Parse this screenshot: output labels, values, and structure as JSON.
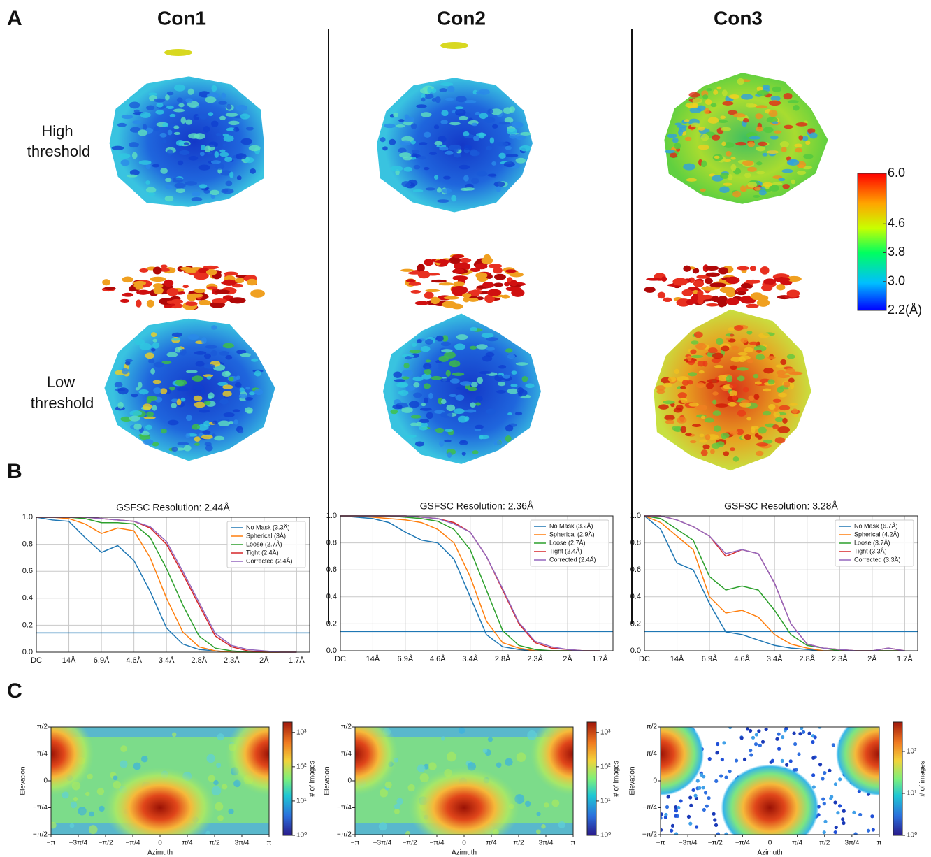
{
  "panel_labels": [
    "A",
    "B",
    "C"
  ],
  "columns": [
    "Con1",
    "Con2",
    "Con3"
  ],
  "row_labels": [
    [
      "High",
      "threshold"
    ],
    [
      "Low",
      "threshold"
    ]
  ],
  "colorbar": {
    "lim": [
      2.2,
      6.0
    ],
    "ticks": [
      {
        "value": 6.0,
        "label": "6.0"
      },
      {
        "value": 4.6,
        "label": "4.6"
      },
      {
        "value": 3.8,
        "label": "3.8"
      },
      {
        "value": 3.0,
        "label": "3.0"
      },
      {
        "value": 2.2,
        "label": "2.2(Å)"
      }
    ]
  },
  "chart_data": [
    {
      "type": "line",
      "title": "GSFSC Resolution: 2.44Å",
      "x": [
        0,
        0.5,
        1,
        1.5,
        2,
        2.5,
        3,
        3.5,
        4,
        4.5,
        5,
        5.5,
        6,
        6.5,
        7,
        7.5,
        8
      ],
      "xlim": [
        0,
        8.4
      ],
      "xticks": [
        {
          "value": 0,
          "label": "DC"
        },
        {
          "value": 1,
          "label": "14Å"
        },
        {
          "value": 2,
          "label": "6.9Å"
        },
        {
          "value": 3,
          "label": "4.6Å"
        },
        {
          "value": 4,
          "label": "3.4Å"
        },
        {
          "value": 5,
          "label": "2.8Å"
        },
        {
          "value": 6,
          "label": "2.3Å"
        },
        {
          "value": 7,
          "label": "2Å"
        },
        {
          "value": 8,
          "label": "1.7Å"
        }
      ],
      "ylim": [
        0,
        1
      ],
      "yticks": [
        {
          "value": 0,
          "label": "0.0"
        },
        0.2,
        0.4,
        0.6,
        0.8,
        {
          "value": 1,
          "label": "1.0"
        }
      ],
      "grid": true,
      "legend": "upper right",
      "threshold": 0.143,
      "threshold_color": "#1f77b4",
      "series": [
        {
          "name": "No Mask (3.3Å)",
          "color": "#1f77b4",
          "values": [
            1,
            0.98,
            0.97,
            0.85,
            0.74,
            0.79,
            0.68,
            0.45,
            0.18,
            0.06,
            0.02,
            0.01,
            0,
            0,
            0,
            0,
            0
          ]
        },
        {
          "name": "Spherical (3Å)",
          "color": "#ff7f0e",
          "values": [
            1,
            1,
            0.99,
            0.95,
            0.88,
            0.92,
            0.9,
            0.7,
            0.4,
            0.15,
            0.04,
            0.01,
            0,
            0,
            0,
            0,
            0
          ]
        },
        {
          "name": "Loose (2.7Å)",
          "color": "#2ca02c",
          "values": [
            1,
            1,
            1,
            0.99,
            0.96,
            0.96,
            0.95,
            0.85,
            0.62,
            0.35,
            0.12,
            0.03,
            0.01,
            0,
            0,
            0,
            0
          ]
        },
        {
          "name": "Tight (2.4Å)",
          "color": "#d62728",
          "values": [
            1,
            1,
            1,
            1,
            0.99,
            0.98,
            0.97,
            0.92,
            0.8,
            0.58,
            0.35,
            0.12,
            0.04,
            0.01,
            0,
            0,
            0
          ]
        },
        {
          "name": "Corrected (2.4Å)",
          "color": "#9467bd",
          "values": [
            1,
            1,
            1,
            1,
            0.99,
            0.98,
            0.97,
            0.93,
            0.82,
            0.6,
            0.37,
            0.14,
            0.05,
            0.02,
            0.01,
            0,
            0
          ]
        }
      ]
    },
    {
      "type": "line",
      "title": "GSFSC Resolution: 2.36Å",
      "x": [
        0,
        0.5,
        1,
        1.5,
        2,
        2.5,
        3,
        3.5,
        4,
        4.5,
        5,
        5.5,
        6,
        6.5,
        7,
        7.5,
        8
      ],
      "xlim": [
        0,
        8.4
      ],
      "xticks": [
        {
          "value": 0,
          "label": "DC"
        },
        {
          "value": 1,
          "label": "14Å"
        },
        {
          "value": 2,
          "label": "6.9Å"
        },
        {
          "value": 3,
          "label": "4.6Å"
        },
        {
          "value": 4,
          "label": "3.4Å"
        },
        {
          "value": 5,
          "label": "2.8Å"
        },
        {
          "value": 6,
          "label": "2.3Å"
        },
        {
          "value": 7,
          "label": "2Å"
        },
        {
          "value": 8,
          "label": "1.7Å"
        }
      ],
      "ylim": [
        0,
        1
      ],
      "yticks": [
        {
          "value": 0,
          "label": "0.0"
        },
        0.2,
        0.4,
        0.6,
        0.8,
        {
          "value": 1,
          "label": "1.0"
        }
      ],
      "grid": true,
      "legend": "upper right",
      "threshold": 0.143,
      "threshold_color": "#1f77b4",
      "series": [
        {
          "name": "No Mask (3.2Å)",
          "color": "#1f77b4",
          "values": [
            1,
            0.99,
            0.98,
            0.95,
            0.88,
            0.82,
            0.8,
            0.68,
            0.4,
            0.12,
            0.03,
            0.01,
            0,
            0,
            0,
            0,
            0
          ]
        },
        {
          "name": "Spherical (2.9Å)",
          "color": "#ff7f0e",
          "values": [
            1,
            1,
            0.99,
            0.98,
            0.97,
            0.95,
            0.9,
            0.8,
            0.55,
            0.22,
            0.06,
            0.02,
            0,
            0,
            0,
            0,
            0
          ]
        },
        {
          "name": "Loose (2.7Å)",
          "color": "#2ca02c",
          "values": [
            1,
            1,
            1,
            1,
            0.99,
            0.98,
            0.96,
            0.9,
            0.75,
            0.45,
            0.15,
            0.04,
            0.01,
            0,
            0,
            0,
            0
          ]
        },
        {
          "name": "Tight (2.4Å)",
          "color": "#d62728",
          "values": [
            1,
            1,
            1,
            1,
            1,
            0.99,
            0.98,
            0.95,
            0.88,
            0.7,
            0.45,
            0.2,
            0.06,
            0.02,
            0.01,
            0,
            0
          ]
        },
        {
          "name": "Corrected (2.4Å)",
          "color": "#9467bd",
          "values": [
            1,
            1,
            1,
            1,
            1,
            0.99,
            0.98,
            0.94,
            0.88,
            0.7,
            0.46,
            0.21,
            0.07,
            0.03,
            0.01,
            0,
            0
          ]
        }
      ]
    },
    {
      "type": "line",
      "title": "GSFSC Resolution: 3.28Å",
      "x": [
        0,
        0.5,
        1,
        1.5,
        2,
        2.5,
        3,
        3.5,
        4,
        4.5,
        5,
        5.5,
        6,
        6.5,
        7,
        7.5,
        8
      ],
      "xlim": [
        0,
        8.4
      ],
      "xticks": [
        {
          "value": 0,
          "label": "DC"
        },
        {
          "value": 1,
          "label": "14Å"
        },
        {
          "value": 2,
          "label": "6.9Å"
        },
        {
          "value": 3,
          "label": "4.6Å"
        },
        {
          "value": 4,
          "label": "3.4Å"
        },
        {
          "value": 5,
          "label": "2.8Å"
        },
        {
          "value": 6,
          "label": "2.3Å"
        },
        {
          "value": 7,
          "label": "2Å"
        },
        {
          "value": 8,
          "label": "1.7Å"
        }
      ],
      "ylim": [
        0,
        1
      ],
      "yticks": [
        {
          "value": 0,
          "label": "0.0"
        },
        0.2,
        0.4,
        0.6,
        0.8,
        {
          "value": 1,
          "label": "1.0"
        }
      ],
      "grid": true,
      "legend": "upper right",
      "threshold": 0.143,
      "threshold_color": "#1f77b4",
      "series": [
        {
          "name": "No Mask (6.7Å)",
          "color": "#1f77b4",
          "values": [
            1,
            0.9,
            0.65,
            0.6,
            0.35,
            0.14,
            0.12,
            0.08,
            0.04,
            0.02,
            0.01,
            0,
            0,
            0,
            0,
            0,
            0
          ]
        },
        {
          "name": "Spherical (4.2Å)",
          "color": "#ff7f0e",
          "values": [
            1,
            0.95,
            0.85,
            0.75,
            0.4,
            0.28,
            0.3,
            0.25,
            0.12,
            0.05,
            0.02,
            0,
            0,
            0,
            0,
            0,
            0
          ]
        },
        {
          "name": "Loose (3.7Å)",
          "color": "#2ca02c",
          "values": [
            1,
            0.98,
            0.9,
            0.82,
            0.55,
            0.45,
            0.48,
            0.45,
            0.3,
            0.12,
            0.04,
            0.02,
            0,
            0,
            0,
            0,
            0
          ]
        },
        {
          "name": "Tight (3.3Å)",
          "color": "#d62728",
          "values": [
            1,
            1,
            0.97,
            0.92,
            0.85,
            0.7,
            0.75,
            0.72,
            0.5,
            0.2,
            0.05,
            0.02,
            0.01,
            0,
            0,
            0.02,
            0
          ]
        },
        {
          "name": "Corrected (3.3Å)",
          "color": "#9467bd",
          "values": [
            1,
            1,
            0.97,
            0.92,
            0.85,
            0.72,
            0.75,
            0.72,
            0.5,
            0.2,
            0.05,
            0.02,
            0.01,
            0,
            0,
            0.02,
            0
          ]
        }
      ]
    },
    {
      "type": "hexbin",
      "xlabel": "Azimuth",
      "ylabel": "Elevation",
      "colorbar_label": "# of images",
      "xlim": [
        -3.14159,
        3.14159
      ],
      "xticks": [
        {
          "value": -3.14159,
          "label": "−π"
        },
        {
          "value": -2.35619,
          "label": "−3π/4"
        },
        {
          "value": -1.5708,
          "label": "−π/2"
        },
        {
          "value": -0.785398,
          "label": "−π/4"
        },
        0,
        {
          "value": 0.785398,
          "label": "π/4"
        },
        {
          "value": 1.5708,
          "label": "π/2"
        },
        {
          "value": 2.35619,
          "label": "3π/4"
        },
        {
          "value": 3.14159,
          "label": "π"
        }
      ],
      "ylim": [
        -1.5708,
        1.5708
      ],
      "yticks": [
        {
          "value": -1.5708,
          "label": "−π/2"
        },
        {
          "value": -0.785398,
          "label": "−π/4"
        },
        0,
        {
          "value": 0.785398,
          "label": "π/4"
        },
        {
          "value": 1.5708,
          "label": "π/2"
        }
      ],
      "clim": [
        1,
        2000
      ],
      "log_scale": true,
      "cticks": [
        {
          "value": 1,
          "label": "10⁰"
        },
        {
          "value": 10,
          "label": "10¹"
        },
        {
          "value": 100,
          "label": "10²"
        },
        {
          "value": 1000,
          "label": "10³"
        }
      ]
    },
    {
      "type": "hexbin",
      "xlabel": "Azimuth",
      "ylabel": "Elevation",
      "colorbar_label": "# of images",
      "xlim": [
        -3.14159,
        3.14159
      ],
      "xticks": [
        {
          "value": -3.14159,
          "label": "−π"
        },
        {
          "value": -2.35619,
          "label": "−3π/4"
        },
        {
          "value": -1.5708,
          "label": "−π/2"
        },
        {
          "value": -0.785398,
          "label": "−π/4"
        },
        0,
        {
          "value": 0.785398,
          "label": "π/4"
        },
        {
          "value": 1.5708,
          "label": "π/2"
        },
        {
          "value": 2.35619,
          "label": "3π/4"
        },
        {
          "value": 3.14159,
          "label": "π"
        }
      ],
      "ylim": [
        -1.5708,
        1.5708
      ],
      "yticks": [
        {
          "value": -1.5708,
          "label": "−π/2"
        },
        {
          "value": -0.785398,
          "label": "−π/4"
        },
        0,
        {
          "value": 0.785398,
          "label": "π/4"
        },
        {
          "value": 1.5708,
          "label": "π/2"
        }
      ],
      "clim": [
        1,
        2000
      ],
      "log_scale": true,
      "cticks": [
        {
          "value": 1,
          "label": "10⁰"
        },
        {
          "value": 10,
          "label": "10¹"
        },
        {
          "value": 100,
          "label": "10²"
        },
        {
          "value": 1000,
          "label": "10³"
        }
      ]
    },
    {
      "type": "hexbin",
      "xlabel": "Azimuth",
      "ylabel": "Elevation",
      "colorbar_label": "# of images",
      "xlim": [
        -3.14159,
        3.14159
      ],
      "xticks": [
        {
          "value": -3.14159,
          "label": "−π"
        },
        {
          "value": -2.35619,
          "label": "−3π/4"
        },
        {
          "value": -1.5708,
          "label": "−π/2"
        },
        {
          "value": -0.785398,
          "label": "−π/4"
        },
        0,
        {
          "value": 0.785398,
          "label": "π/4"
        },
        {
          "value": 1.5708,
          "label": "π/2"
        },
        {
          "value": 2.35619,
          "label": "3π/4"
        },
        {
          "value": 3.14159,
          "label": "π"
        }
      ],
      "ylim": [
        -1.5708,
        1.5708
      ],
      "yticks": [
        {
          "value": -1.5708,
          "label": "−π/2"
        },
        {
          "value": -0.785398,
          "label": "−π/4"
        },
        0,
        {
          "value": 0.785398,
          "label": "π/4"
        },
        {
          "value": 1.5708,
          "label": "π/2"
        }
      ],
      "clim": [
        1,
        500
      ],
      "log_scale": true,
      "cticks": [
        {
          "value": 1,
          "label": "10⁰"
        },
        {
          "value": 10,
          "label": "10¹"
        },
        {
          "value": 100,
          "label": "10²"
        }
      ]
    }
  ]
}
